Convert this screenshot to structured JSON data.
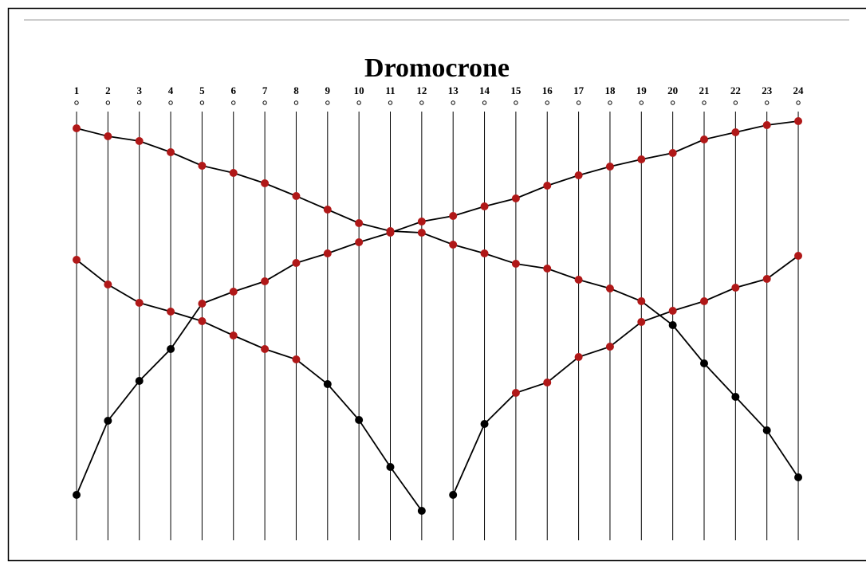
{
  "chart_data": {
    "type": "line",
    "title": "Dromocrone",
    "categories": [
      "1",
      "2",
      "3",
      "4",
      "5",
      "6",
      "7",
      "8",
      "9",
      "10",
      "11",
      "12",
      "13",
      "14",
      "15",
      "16",
      "17",
      "18",
      "19",
      "20",
      "21",
      "22",
      "23",
      "24"
    ],
    "ylim": [
      20,
      560
    ],
    "line_color": "#000000",
    "series": [
      {
        "values": [
          539,
          529,
          523,
          509,
          492,
          483,
          470,
          454,
          437,
          420,
          410,
          408,
          393,
          382,
          369,
          363,
          349,
          338,
          322,
          292,
          244,
          202,
          160,
          101
        ],
        "marker_colors": [
          "#b01818",
          "#b01818",
          "#b01818",
          "#b01818",
          "#b01818",
          "#b01818",
          "#b01818",
          "#b01818",
          "#b01818",
          "#b01818",
          "#b01818",
          "#b01818",
          "#b01818",
          "#b01818",
          "#b01818",
          "#b01818",
          "#b01818",
          "#b01818",
          "#b01818",
          "#000000",
          "#000000",
          "#000000",
          "#000000",
          "#000000"
        ]
      },
      {
        "values": [
          79,
          172,
          222,
          262,
          319,
          334,
          347,
          370,
          382,
          396,
          408,
          422,
          429,
          441,
          451,
          467,
          480,
          491,
          500,
          508,
          525,
          534,
          543,
          548
        ],
        "marker_colors": [
          "#000000",
          "#000000",
          "#000000",
          "#000000",
          "#b01818",
          "#b01818",
          "#b01818",
          "#b01818",
          "#b01818",
          "#b01818",
          "#b01818",
          "#b01818",
          "#b01818",
          "#b01818",
          "#b01818",
          "#b01818",
          "#b01818",
          "#b01818",
          "#b01818",
          "#b01818",
          "#b01818",
          "#b01818",
          "#b01818",
          "#b01818"
        ]
      },
      {
        "values": [
          374,
          343,
          320,
          309,
          297,
          279,
          262,
          249,
          218,
          173,
          114,
          59,
          null,
          null,
          null,
          null,
          null,
          null,
          null,
          null,
          null,
          null,
          null,
          null
        ],
        "marker_colors": [
          "#b01818",
          "#b01818",
          "#b01818",
          "#b01818",
          "#b01818",
          "#b01818",
          "#b01818",
          "#b01818",
          "#000000",
          "#000000",
          "#000000",
          "#000000",
          null,
          null,
          null,
          null,
          null,
          null,
          null,
          null,
          null,
          null,
          null,
          null
        ]
      },
      {
        "values": [
          null,
          null,
          null,
          null,
          null,
          null,
          null,
          null,
          null,
          null,
          null,
          null,
          79,
          168,
          207,
          220,
          252,
          265,
          296,
          310,
          322,
          339,
          350,
          379
        ],
        "marker_colors": [
          null,
          null,
          null,
          null,
          null,
          null,
          null,
          null,
          null,
          null,
          null,
          null,
          "#000000",
          "#000000",
          "#b01818",
          "#b01818",
          "#b01818",
          "#b01818",
          "#b01818",
          "#b01818",
          "#b01818",
          "#b01818",
          "#b01818",
          "#b01818"
        ]
      }
    ]
  }
}
